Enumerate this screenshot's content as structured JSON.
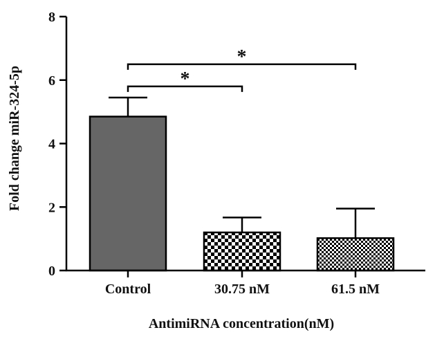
{
  "chart_data": {
    "type": "bar",
    "title": "",
    "xlabel": "AntimiRNA concentration(nM)",
    "ylabel": "Fold change miR-324-5p",
    "ylim": [
      0,
      8
    ],
    "yticks": [
      0,
      2,
      4,
      6,
      8
    ],
    "categories": [
      "Control",
      "30.75 nM",
      "61.5 nM"
    ],
    "values": [
      4.85,
      1.2,
      1.02
    ],
    "errors": [
      0.6,
      0.47,
      0.93
    ],
    "fills": [
      "solid-gray",
      "checkerboard",
      "fine-checkerboard"
    ],
    "colors": {
      "bar": "#666666",
      "edge": "#000000"
    },
    "significance": [
      {
        "from": 0,
        "to": 1,
        "label": "*",
        "y": 5.8
      },
      {
        "from": 0,
        "to": 2,
        "label": "*",
        "y": 6.5
      }
    ]
  }
}
